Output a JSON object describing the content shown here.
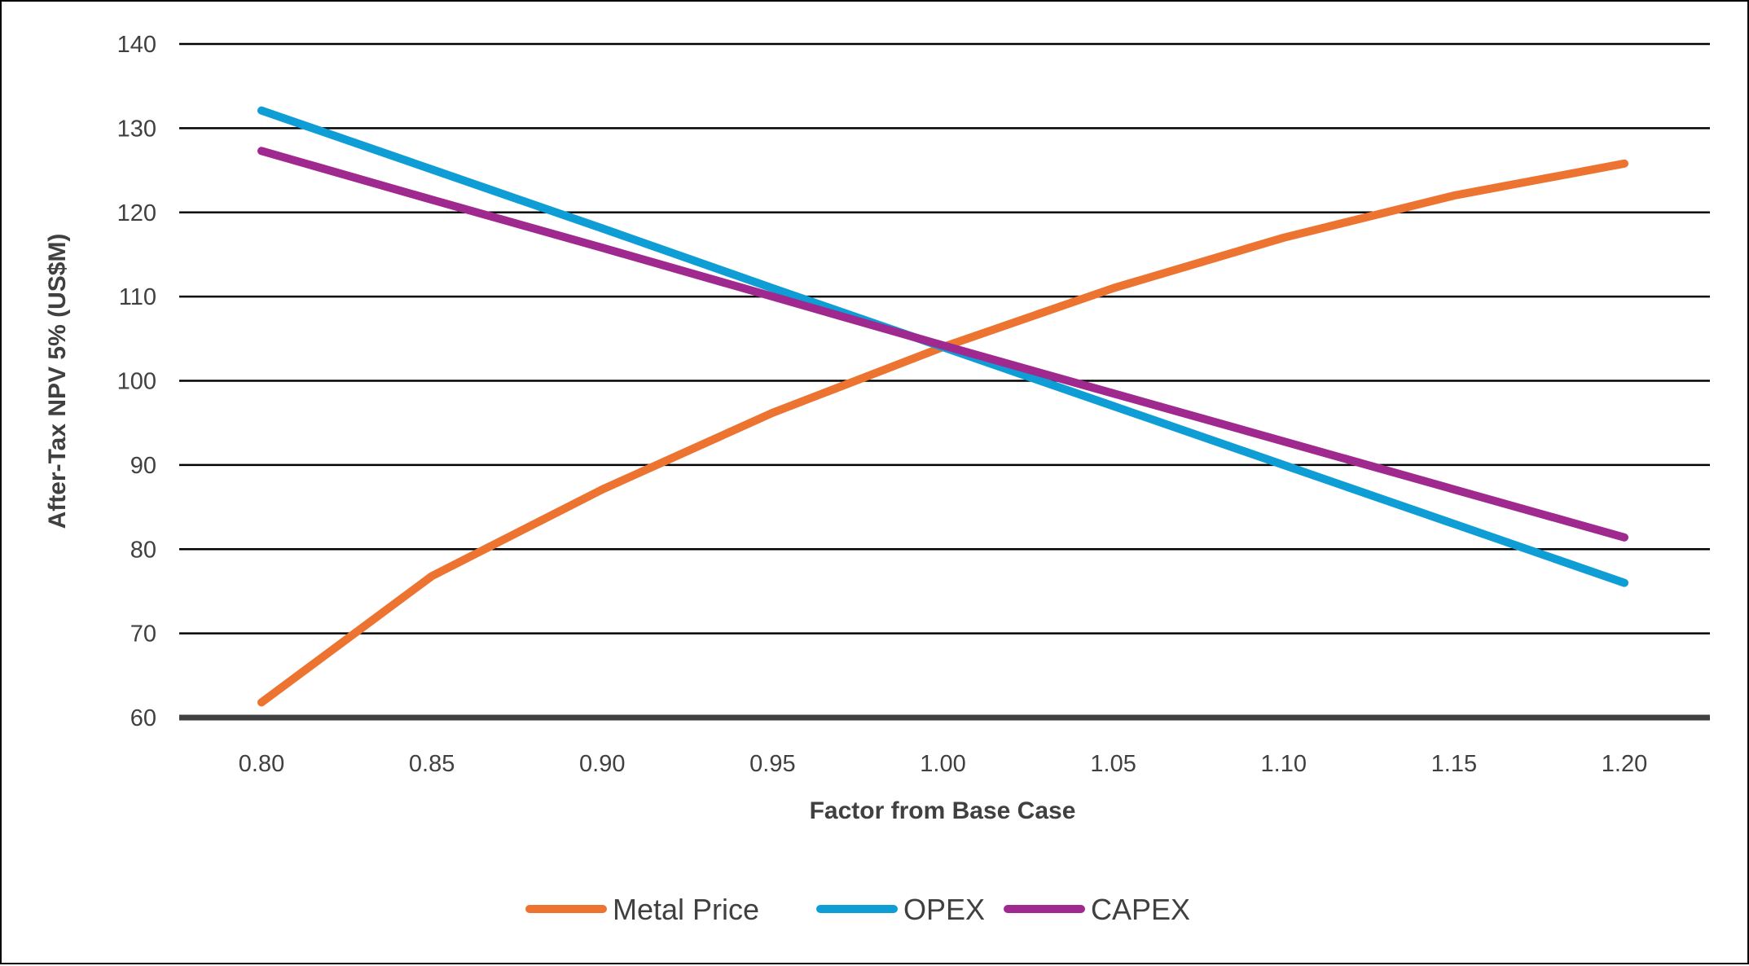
{
  "chart_data": {
    "type": "line",
    "title": "",
    "xlabel": "Factor from Base Case",
    "ylabel": "After-Tax NPV 5% (US$M)",
    "x": [
      0.8,
      0.85,
      0.9,
      0.95,
      1.0,
      1.05,
      1.1,
      1.15,
      1.2
    ],
    "x_tick_labels": [
      "0.80",
      "0.85",
      "0.90",
      "0.95",
      "1.00",
      "1.05",
      "1.10",
      "1.15",
      "1.20"
    ],
    "ylim": [
      60,
      140
    ],
    "y_ticks": [
      60,
      70,
      80,
      90,
      100,
      110,
      120,
      130,
      140
    ],
    "grid": "horizontal",
    "legend_position": "bottom",
    "series": [
      {
        "name": "Metal Price",
        "color": "#ED7330",
        "values": [
          61.8,
          76.8,
          87.1,
          96.2,
          104.0,
          111.0,
          117.0,
          122.0,
          125.8
        ]
      },
      {
        "name": "OPEX",
        "color": "#0E9ED5",
        "values": [
          132.1,
          125.1,
          118.1,
          111.0,
          104.0,
          97.0,
          90.0,
          83.0,
          76.0
        ]
      },
      {
        "name": "CAPEX",
        "color": "#A0298F",
        "values": [
          127.3,
          121.5,
          115.8,
          110.0,
          104.2,
          98.5,
          92.8,
          87.1,
          81.4
        ]
      }
    ]
  }
}
